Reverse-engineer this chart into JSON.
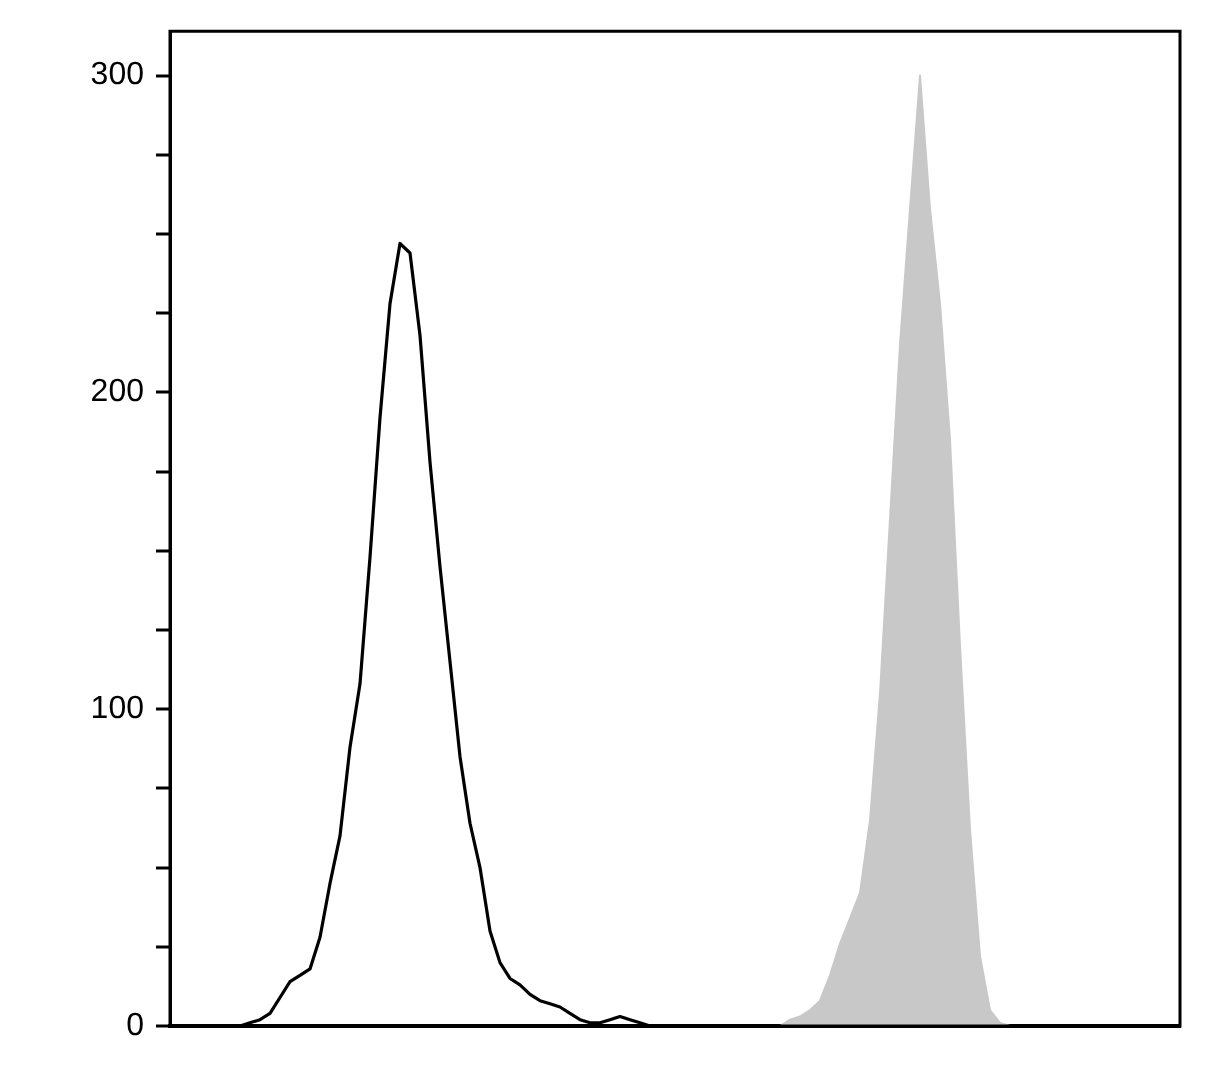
{
  "chart_data": {
    "type": "line",
    "categories": [
      null,
      null,
      null,
      null,
      null,
      null,
      null,
      null,
      null,
      null,
      null,
      null,
      null,
      null,
      null,
      null,
      null,
      null,
      null,
      null,
      null,
      null,
      null,
      null,
      null,
      null,
      null,
      null,
      null,
      null,
      null,
      null,
      null,
      null,
      null,
      null,
      null,
      null,
      null,
      null,
      null,
      null,
      null,
      null,
      null,
      null,
      null,
      null,
      null,
      null,
      null,
      null,
      null,
      null,
      null,
      null,
      null,
      null,
      null,
      null,
      null,
      null,
      null,
      null,
      null,
      null,
      null,
      null,
      null,
      null,
      null,
      null,
      null,
      null,
      null,
      null,
      null,
      null,
      null,
      null,
      null,
      null,
      null,
      null,
      null,
      null,
      null,
      null,
      null,
      null,
      null,
      null,
      null,
      null,
      null,
      null,
      null,
      null,
      null,
      null,
      null,
      null
    ],
    "series": [
      {
        "type": "area",
        "color": "#c8c8c8",
        "values": [
          0,
          0,
          0,
          0,
          0,
          0,
          0,
          0,
          0,
          0,
          0,
          0,
          0,
          0,
          0,
          0,
          0,
          0,
          0,
          0,
          0,
          0,
          0,
          0,
          0,
          0,
          0,
          0,
          0,
          0,
          0,
          0,
          0,
          0,
          0,
          0,
          0,
          0,
          0,
          0,
          0,
          0,
          0,
          0,
          0,
          0,
          0,
          0,
          0,
          0,
          0,
          0,
          0,
          0,
          0,
          0,
          0,
          0,
          0,
          0,
          0,
          0,
          2,
          3,
          5,
          8,
          16,
          26,
          34,
          42,
          65,
          105,
          160,
          215,
          258,
          300,
          258,
          228,
          185,
          120,
          62,
          22,
          5,
          1,
          0,
          0,
          0,
          0,
          0,
          0,
          0,
          0,
          0,
          0,
          0,
          0,
          0,
          0,
          0,
          0,
          0,
          0
        ]
      },
      {
        "type": "line",
        "color": "#000000",
        "values": [
          0,
          0,
          0,
          0,
          0,
          0,
          0,
          0,
          1,
          2,
          4,
          9,
          14,
          16,
          18,
          28,
          45,
          60,
          88,
          108,
          148,
          192,
          228,
          247,
          244,
          218,
          178,
          145,
          115,
          85,
          64,
          50,
          30,
          20,
          15,
          13,
          10,
          8,
          7,
          6,
          4,
          2,
          1,
          1,
          2,
          3,
          2,
          1,
          0,
          0,
          0,
          0,
          0,
          0,
          0,
          0,
          0,
          0,
          0,
          0,
          0,
          0,
          0,
          0,
          0,
          0,
          0,
          0,
          0,
          0,
          0,
          0,
          0,
          0,
          0,
          0,
          0,
          0,
          0,
          0,
          0,
          0,
          0,
          0,
          0,
          0,
          0,
          0,
          0,
          0,
          0,
          0,
          0,
          0,
          0,
          0,
          0,
          0,
          0,
          0,
          0,
          0
        ]
      }
    ],
    "ylim": [
      0,
      314
    ],
    "yticks": [
      0,
      {
        "value": 25,
        "label": null
      },
      {
        "value": 50,
        "label": null
      },
      {
        "value": 75,
        "label": null
      },
      100,
      {
        "value": 125,
        "label": null
      },
      {
        "value": 150,
        "label": null
      },
      {
        "value": 175,
        "label": null
      },
      200,
      {
        "value": 225,
        "label": null
      },
      {
        "value": 250,
        "label": null
      },
      {
        "value": 275,
        "label": null
      },
      300
    ],
    "tick_labels": "y",
    "grid": false,
    "legend": false,
    "marker": "none"
  }
}
